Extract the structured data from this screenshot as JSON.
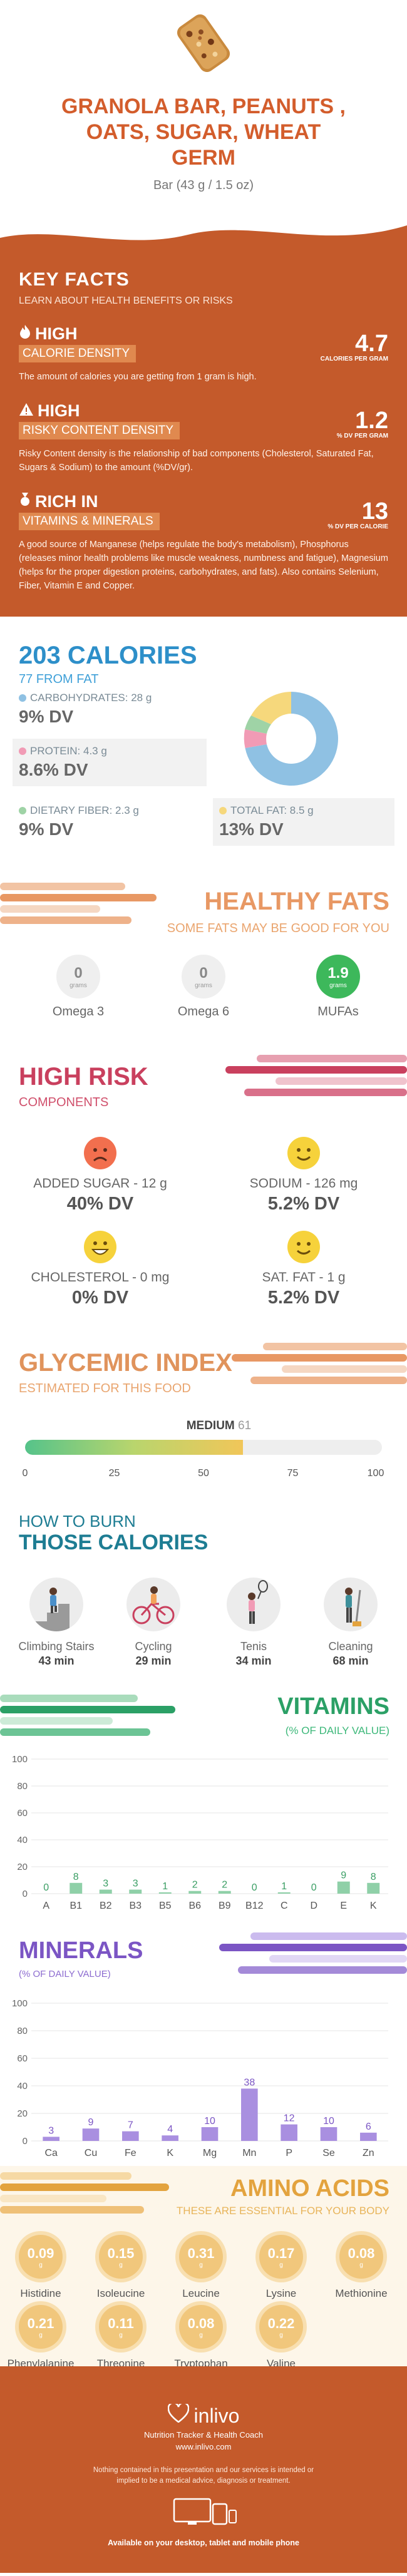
{
  "hero": {
    "title_line1": "GRANOLA BAR, PEANUTS ,",
    "title_line2": "OATS, SUGAR, WHEAT",
    "title_line3": "GERM",
    "serving": "Bar (43 g / 1.5 oz)"
  },
  "key_facts": {
    "title": "KEY FACTS",
    "subtitle": "LEARN ABOUT HEALTH BENEFITS OR RISKS",
    "facts": [
      {
        "level": "HIGH",
        "name": "CALORIE DENSITY",
        "value": "4.7",
        "unit": "CALORIES PER GRAM",
        "icon": "flame-icon",
        "desc": "The amount of calories you are getting from 1 gram is high."
      },
      {
        "level": "HIGH",
        "name": "RISKY CONTENT DENSITY",
        "value": "1.2",
        "unit": "% DV PER GRAM",
        "icon": "warning-icon",
        "desc": "Risky Content density is the relationship of bad components (Cholesterol, Saturated Fat, Sugars & Sodium) to the amount (%DV/gr)."
      },
      {
        "level": "RICH  IN",
        "name": "VITAMINS & MINERALS",
        "value": "13",
        "unit": "% DV PER CALORIE",
        "icon": "medal-icon",
        "desc": "A good source of Manganese (helps regulate the body's metabolism), Phosphorus (releases minor health problems like muscle weakness, numbness and fatigue), Magnesium (helps for the proper digestion proteins, carbohydrates, and fats). Also contains Selenium, Fiber, Vitamin E and Copper."
      }
    ]
  },
  "calories": {
    "title": "203 CALORIES",
    "subtitle": "77 FROM FAT",
    "carbs_label": "CARBOHYDRATES: 28 g",
    "carbs_dv": "9% DV",
    "protein_label": "PROTEIN: 4.3 g",
    "protein_dv": "8.6% DV",
    "fiber_label": "DIETARY FIBER: 2.3 g",
    "fiber_dv": "9% DV",
    "fat_label": "TOTAL FAT: 8.5 g",
    "fat_dv": "13% DV",
    "colors": {
      "carbs": "#8fc1e3",
      "protein": "#f19bb5",
      "fiber": "#9fd3a6",
      "fat": "#f6d87c"
    }
  },
  "fats": {
    "title": "HEALTHY FATS",
    "subtitle": "SOME FATS MAY BE GOOD FOR YOU",
    "items": [
      {
        "value": "0",
        "unit": "grams",
        "name": "Omega 3"
      },
      {
        "value": "0",
        "unit": "grams",
        "name": "Omega 6"
      },
      {
        "value": "1.9",
        "unit": "grams",
        "name": "MUFAs"
      }
    ]
  },
  "risk": {
    "title": "HIGH RISK",
    "subtitle": "COMPONENTS",
    "items": [
      {
        "name": "ADDED SUGAR - 12 g",
        "dv": "40% DV",
        "face": "sad-face-icon"
      },
      {
        "name": "SODIUM - 126 mg",
        "dv": "5.2% DV",
        "face": "smile-face-icon"
      },
      {
        "name": "CHOLESTEROL - 0 mg",
        "dv": "0% DV",
        "face": "happy-face-icon"
      },
      {
        "name": "SAT. FAT - 1 g",
        "dv": "5.2% DV",
        "face": "smile-face-icon"
      }
    ]
  },
  "glycemic": {
    "title": "GLYCEMIC INDEX",
    "subtitle": "ESTIMATED FOR THIS FOOD",
    "level": "MEDIUM",
    "value": "61",
    "fraction": 0.61,
    "ticks": [
      "0",
      "25",
      "50",
      "75",
      "100"
    ]
  },
  "burn": {
    "title_line1": "HOW TO BURN",
    "title_line2": "THOSE CALORIES",
    "items": [
      {
        "name": "Climbing Stairs",
        "time": "43 min",
        "icon": "stairs-icon"
      },
      {
        "name": "Cycling",
        "time": "29 min",
        "icon": "bicycle-icon"
      },
      {
        "name": "Tenis",
        "time": "34 min",
        "icon": "tennis-icon"
      },
      {
        "name": "Cleaning",
        "time": "68 min",
        "icon": "broom-icon"
      }
    ]
  },
  "chart_data": [
    {
      "type": "bar",
      "title": "VITAMINS",
      "subtitle": "(% OF DAILY VALUE)",
      "categories": [
        "A",
        "B1",
        "B2",
        "B3",
        "B5",
        "B6",
        "B9",
        "B12",
        "C",
        "D",
        "E",
        "K"
      ],
      "values": [
        0,
        8,
        3,
        3,
        1,
        2,
        2,
        0,
        1,
        0,
        9,
        8
      ],
      "ylim": [
        0,
        100
      ],
      "yticks": [
        "0",
        "20",
        "40",
        "60",
        "80",
        "100"
      ],
      "color": "#8fd0a8",
      "label_color": "#3a9e64"
    },
    {
      "type": "bar",
      "title": "MINERALS",
      "subtitle": "(% OF DAILY VALUE)",
      "categories": [
        "Ca",
        "Cu",
        "Fe",
        "K",
        "Mg",
        "Mn",
        "P",
        "Se",
        "Zn"
      ],
      "values": [
        3,
        9,
        7,
        4,
        10,
        38,
        12,
        10,
        6
      ],
      "ylim": [
        0,
        100
      ],
      "yticks": [
        "0",
        "20",
        "40",
        "60",
        "80",
        "100"
      ],
      "color": "#a98fe0",
      "label_color": "#7b55c4"
    }
  ],
  "amino": {
    "title": "AMINO ACIDS",
    "subtitle": "THESE ARE ESSENTIAL FOR YOUR BODY",
    "items": [
      {
        "value": "0.09",
        "unit": "g",
        "name": "Histidine"
      },
      {
        "value": "0.15",
        "unit": "g",
        "name": "Isoleucine"
      },
      {
        "value": "0.31",
        "unit": "g",
        "name": "Leucine"
      },
      {
        "value": "0.17",
        "unit": "g",
        "name": "Lysine"
      },
      {
        "value": "0.08",
        "unit": "g",
        "name": "Methionine"
      },
      {
        "value": "0.21",
        "unit": "g",
        "name": "Phenylalanine"
      },
      {
        "value": "0.11",
        "unit": "g",
        "name": "Threonine"
      },
      {
        "value": "0.08",
        "unit": "g",
        "name": "Tryptophan"
      },
      {
        "value": "0.22",
        "unit": "g",
        "name": "Valine"
      }
    ]
  },
  "footer": {
    "brand": "inlivo",
    "tagline": "Nutrition Tracker & Health Coach",
    "url": "www.inlivo.com",
    "disclaimer": "Nothing contained in this presentation and our services is intended or implied to be a medical advice, diagnosis or treatment.",
    "available": "Available on your desktop, tablet and mobile phone"
  }
}
